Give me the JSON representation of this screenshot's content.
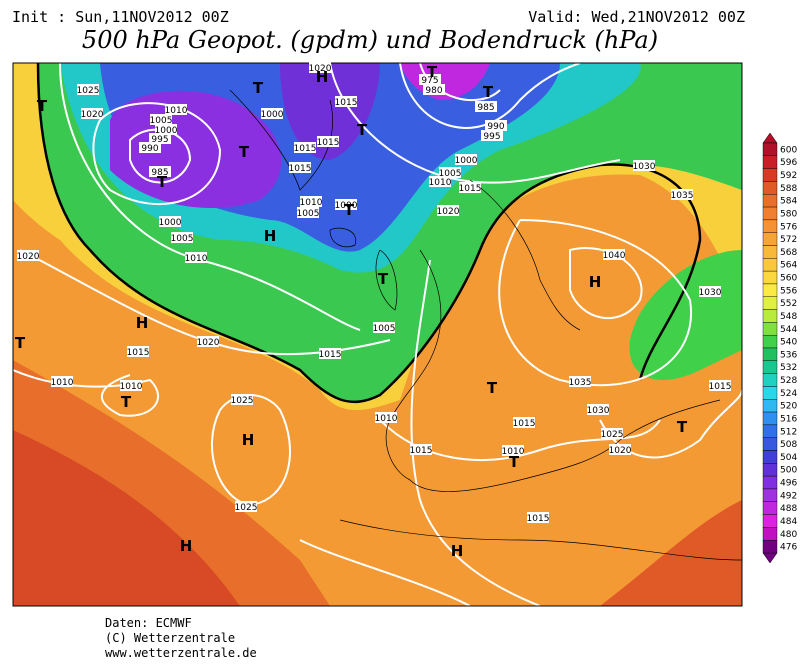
{
  "header": {
    "init": "Init : Sun,11NOV2012 00Z",
    "valid": "Valid: Wed,21NOV2012 00Z",
    "title": "500 hPa Geopot. (gpdm) und Bodendruck (hPa)"
  },
  "map": {
    "isobar_labels": [
      1025,
      1020,
      1010,
      1005,
      1000,
      995,
      990,
      985,
      1000,
      1015,
      1015,
      1015,
      1020,
      1015,
      975,
      980,
      985,
      990,
      995,
      1000,
      1005,
      1010,
      1015,
      1020,
      1010,
      1005,
      1000,
      1000,
      1005,
      1010,
      1020,
      1030,
      1035,
      1040,
      1030,
      1015,
      1020,
      1010,
      1010,
      1015,
      1005,
      1010,
      1025,
      1025,
      1015,
      1010,
      1015,
      1015,
      1035,
      1030,
      1025,
      1020,
      1015
    ],
    "centers": [
      "T",
      "T",
      "T",
      "T",
      "H",
      "T",
      "T",
      "T",
      "H",
      "T",
      "T",
      "H",
      "T",
      "T",
      "H",
      "H",
      "H",
      "T",
      "H",
      "T",
      "T"
    ]
  },
  "colorbar": {
    "ticks": [
      600,
      596,
      592,
      588,
      584,
      580,
      576,
      572,
      568,
      564,
      560,
      556,
      552,
      548,
      544,
      540,
      536,
      532,
      528,
      524,
      520,
      516,
      512,
      508,
      504,
      500,
      496,
      492,
      488,
      484,
      480,
      476
    ],
    "colors": [
      "#b0102a",
      "#c81e28",
      "#d83a24",
      "#e05a28",
      "#e86e2c",
      "#f08030",
      "#f49234",
      "#f6a436",
      "#f8b83a",
      "#fac83c",
      "#fcd840",
      "#fcea44",
      "#e0f040",
      "#b8ec3c",
      "#80e040",
      "#40d04a",
      "#20c060",
      "#18c890",
      "#20d0c0",
      "#28d8e8",
      "#30b8f0",
      "#3090f0",
      "#3070e8",
      "#3858e0",
      "#4040d8",
      "#6030d8",
      "#8030e0",
      "#a030e0",
      "#c028e0",
      "#e020e0",
      "#c010c0",
      "#700080"
    ]
  },
  "footer": {
    "data": "Daten: ECMWF",
    "copyright": "(C) Wetterzentrale",
    "url": "www.wetterzentrale.de"
  }
}
